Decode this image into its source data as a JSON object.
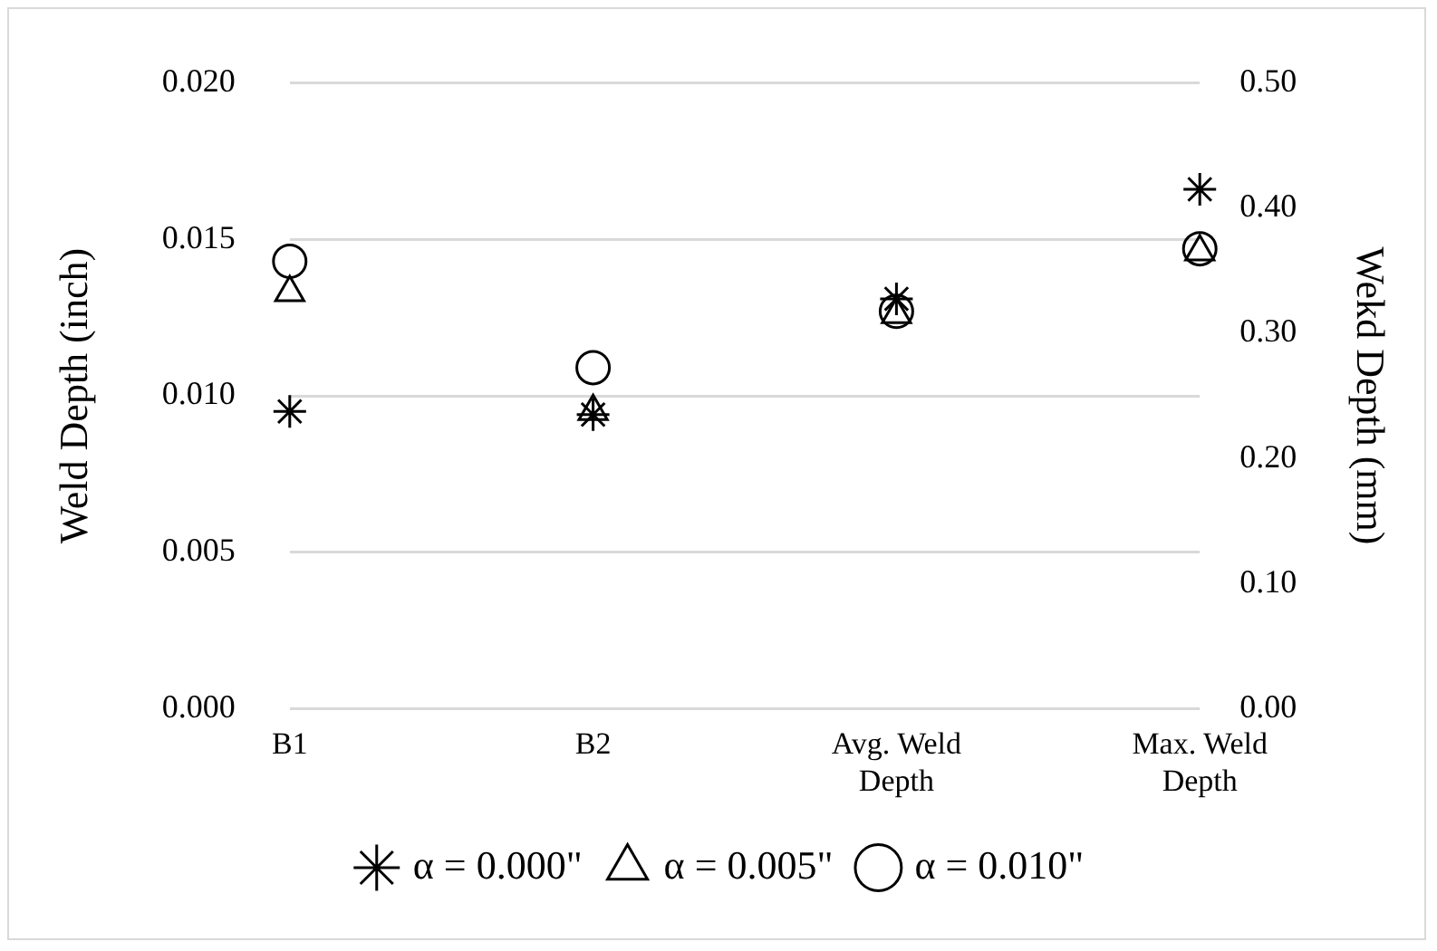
{
  "chart_data": {
    "type": "scatter",
    "ylabel": "Weld Depth (inch)",
    "y2label": "Wekd Depth (mm)",
    "categories": [
      "B1",
      "B2",
      "Avg. Weld Depth",
      "Max. Weld Depth"
    ],
    "series": [
      {
        "name": "α = 0.000\"",
        "color": "#000000",
        "marker": "cross",
        "values": [
          0.0095,
          0.0094,
          0.0131,
          0.0166
        ]
      },
      {
        "name": "α = 0.005\"",
        "color": "#000000",
        "marker": "triangle",
        "values": [
          0.0133,
          0.0095,
          0.0126,
          0.0146
        ]
      },
      {
        "name": "α = 0.010\"",
        "color": "#000000",
        "marker": "circle",
        "values": [
          0.0143,
          0.0109,
          0.0127,
          0.0147
        ]
      }
    ],
    "ylim": [
      0,
      0.02
    ],
    "yticks": [
      {
        "value": 0,
        "label": "0.000"
      },
      {
        "value": 0.005,
        "label": "0.005"
      },
      {
        "value": 0.01,
        "label": "0.010"
      },
      {
        "value": 0.015,
        "label": "0.015"
      },
      {
        "value": 0.02,
        "label": "0.020"
      }
    ],
    "y2lim": [
      0,
      0.5
    ],
    "y2ticks": [
      {
        "value": 0,
        "label": "0.00"
      },
      {
        "value": 0.1,
        "label": "0.10"
      },
      {
        "value": 0.2,
        "label": "0.20"
      },
      {
        "value": 0.3,
        "label": "0.30"
      },
      {
        "value": 0.4,
        "label": "0.40"
      },
      {
        "value": 0.5,
        "label": "0.50"
      }
    ],
    "grid": "y",
    "legend": "bottom"
  }
}
